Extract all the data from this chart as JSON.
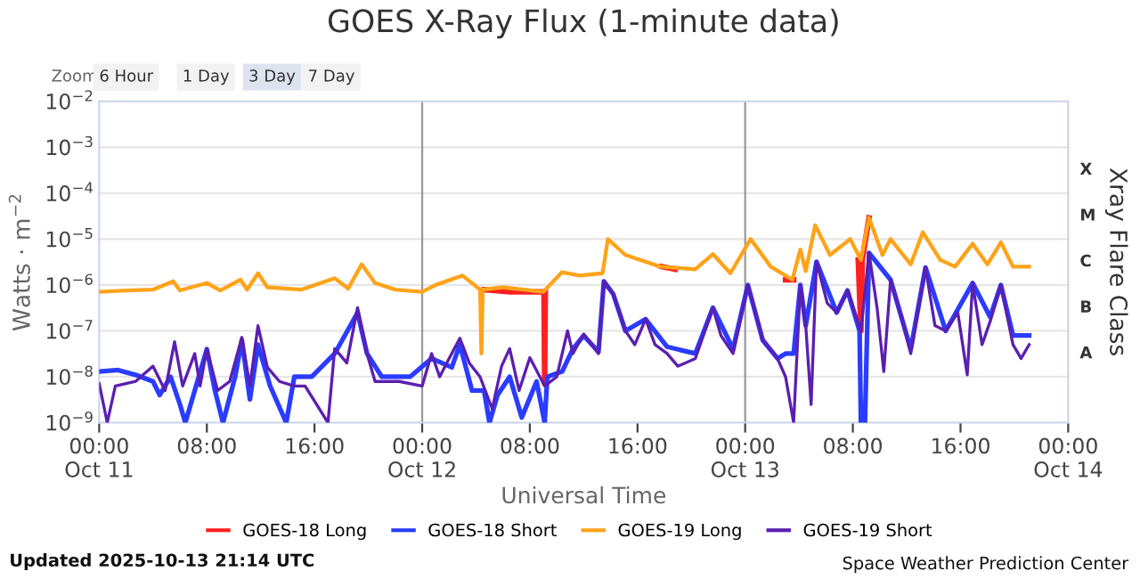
{
  "chart_data": {
    "type": "line",
    "title": "GOES X-Ray Flux (1-minute data)",
    "xlabel": "Universal Time",
    "ylabel": "Watts · m$^{−2}$",
    "y2label": "Xray Flare Class",
    "log": "y",
    "grid": "y",
    "legend": "bottom",
    "marker": "none",
    "line_style": "solid",
    "xlim": [
      "2025-10-11T00:00",
      "2025-10-14T00:00"
    ],
    "xticks": [
      {
        "value": "2025-10-11T00:00",
        "label": "00:00\nOct 11"
      },
      {
        "value": "2025-10-11T08:00",
        "label": "08:00"
      },
      {
        "value": "2025-10-11T16:00",
        "label": "16:00"
      },
      {
        "value": "2025-10-12T00:00",
        "label": "00:00\nOct 12"
      },
      {
        "value": "2025-10-12T08:00",
        "label": "08:00"
      },
      {
        "value": "2025-10-12T16:00",
        "label": "16:00"
      },
      {
        "value": "2025-10-13T00:00",
        "label": "00:00\nOct 13"
      },
      {
        "value": "2025-10-13T08:00",
        "label": "08:00"
      },
      {
        "value": "2025-10-13T16:00",
        "label": "16:00"
      },
      {
        "value": "2025-10-14T00:00",
        "label": "00:00\nOct 14"
      }
    ],
    "ylim": [
      1e-09,
      0.01
    ],
    "yticks": [
      {
        "value": 1e-09,
        "label": "10$^{−9}$"
      },
      {
        "value": 1e-08,
        "label": "10$^{−8}$"
      },
      {
        "value": 1e-07,
        "label": "10$^{−7}$"
      },
      {
        "value": 1e-06,
        "label": "10$^{−6}$"
      },
      {
        "value": 1e-05,
        "label": "10$^{−5}$"
      },
      {
        "value": 0.0001,
        "label": "10$^{−4}$"
      },
      {
        "value": 0.001,
        "label": "10$^{−3}$"
      },
      {
        "value": 0.01,
        "label": "10$^{−2}$"
      }
    ],
    "ref_lines": [
      {
        "axis": "x",
        "value": "2025-10-12T00:00",
        "label": null,
        "color": "#999999"
      },
      {
        "axis": "x",
        "value": "2025-10-13T00:00",
        "label": null,
        "color": "#999999"
      }
    ],
    "annotations": [
      "Zoom",
      "6 Hour",
      "1 Day",
      "3 Day",
      "7 Day",
      "Updated 2025-10-13 21:14 UTC",
      "Space Weather Prediction Center",
      "A",
      "B",
      "C",
      "M",
      "X"
    ],
    "series": [
      {
        "name": "GOES-18 Long",
        "color": "#ff2020",
        "x": [
          "2025-10-12T04:36",
          "2025-10-12T06:30",
          "2025-10-12T09:03",
          "2025-10-12T09:06",
          "2025-10-12T09:09",
          "2025-10-12T12:00",
          "2025-10-12T17:48",
          "2025-10-12T18:48",
          "2025-10-12T22:00",
          "2025-10-13T03:00",
          "2025-10-13T03:36",
          "2025-10-13T06:00",
          "2025-10-13T08:24",
          "2025-10-13T08:36",
          "2025-10-13T08:42",
          "2025-10-13T09:12"
        ],
        "values": [
          7.9e-07,
          7.1e-07,
          7.1e-07,
          7.1e-09,
          7.1e-07,
          null,
          2.5e-06,
          2.2e-06,
          null,
          1.3e-06,
          1.3e-06,
          null,
          3.5e-06,
          1e-07,
          3.5e-06,
          2.9e-05
        ]
      },
      {
        "name": "GOES-18 Short",
        "color": "#2a3cff",
        "x": [
          "2025-10-11T00:00",
          "2025-10-11T01:24",
          "2025-10-11T02:42",
          "2025-10-11T04:00",
          "2025-10-11T04:30",
          "2025-10-11T05:18",
          "2025-10-11T06:00",
          "2025-10-11T06:24",
          "2025-10-11T07:06",
          "2025-10-11T08:00",
          "2025-10-11T08:36",
          "2025-10-11T09:12",
          "2025-10-11T10:06",
          "2025-10-11T10:36",
          "2025-10-11T11:12",
          "2025-10-11T11:48",
          "2025-10-11T12:42",
          "2025-10-11T13:54",
          "2025-10-11T14:30",
          "2025-10-11T15:48",
          "2025-10-11T17:30",
          "2025-10-11T19:12",
          "2025-10-11T19:54",
          "2025-10-11T21:00",
          "2025-10-11T23:06",
          "2025-10-12T00:42",
          "2025-10-12T02:12",
          "2025-10-12T02:48",
          "2025-10-12T03:42",
          "2025-10-12T04:36",
          "2025-10-12T05:00",
          "2025-10-12T05:36",
          "2025-10-12T06:30",
          "2025-10-12T07:24",
          "2025-10-12T08:30",
          "2025-10-12T09:06",
          "2025-10-12T09:18",
          "2025-10-12T10:24",
          "2025-10-12T11:12",
          "2025-10-12T12:00",
          "2025-10-12T13:06",
          "2025-10-12T13:30",
          "2025-10-12T14:12",
          "2025-10-12T15:06",
          "2025-10-12T16:36",
          "2025-10-12T18:12",
          "2025-10-12T20:18",
          "2025-10-12T21:36",
          "2025-10-12T23:06",
          "2025-10-13T00:12",
          "2025-10-13T01:18",
          "2025-10-13T02:24",
          "2025-10-13T03:00",
          "2025-10-13T03:36",
          "2025-10-13T04:06",
          "2025-10-13T04:30",
          "2025-10-13T05:18",
          "2025-10-13T06:48",
          "2025-10-13T07:36",
          "2025-10-13T08:30",
          "2025-10-13T08:36",
          "2025-10-13T08:54",
          "2025-10-13T09:12",
          "2025-10-13T10:48",
          "2025-10-13T12:18",
          "2025-10-13T13:24",
          "2025-10-13T14:54",
          "2025-10-13T16:54",
          "2025-10-13T18:12",
          "2025-10-13T19:00",
          "2025-10-13T19:54",
          "2025-10-13T21:06"
        ],
        "values": [
          1.3e-08,
          1.4e-08,
          1.1e-08,
          7.9e-09,
          4e-09,
          1e-08,
          2.5e-09,
          1e-09,
          5e-09,
          4e-08,
          5e-09,
          1e-09,
          1e-08,
          6.3e-08,
          3.2e-09,
          5e-08,
          6.3e-09,
          1e-09,
          1e-08,
          1e-08,
          3.2e-08,
          2.5e-07,
          3.2e-08,
          1e-08,
          1e-08,
          2.5e-08,
          1.6e-08,
          5e-08,
          5e-09,
          5e-09,
          1e-09,
          4e-09,
          1e-08,
          1.3e-09,
          7.9e-09,
          1e-09,
          1e-08,
          1.3e-08,
          4e-08,
          7.9e-08,
          3.5e-08,
          1.2e-06,
          6.3e-07,
          1e-07,
          1.8e-07,
          4.5e-08,
          3.2e-08,
          3.2e-07,
          4e-08,
          1e-06,
          6.3e-08,
          2.5e-08,
          3.2e-08,
          3.2e-08,
          1e-06,
          1.3e-07,
          3.2e-06,
          2.5e-07,
          7.6e-07,
          1e-07,
          1e-09,
          1e-09,
          5e-06,
          1.3e-06,
          4e-08,
          2.4e-06,
          1e-07,
          1.1e-06,
          2e-07,
          1e-06,
          7.9e-08,
          7.9e-08
        ]
      },
      {
        "name": "GOES-19 Long",
        "color": "#ffa31a",
        "x": [
          "2025-10-11T00:00",
          "2025-10-11T02:00",
          "2025-10-11T04:00",
          "2025-10-11T05:30",
          "2025-10-11T06:00",
          "2025-10-11T08:00",
          "2025-10-11T09:00",
          "2025-10-11T10:30",
          "2025-10-11T11:00",
          "2025-10-11T11:48",
          "2025-10-11T12:30",
          "2025-10-11T15:00",
          "2025-10-11T17:30",
          "2025-10-11T18:30",
          "2025-10-11T19:30",
          "2025-10-11T20:30",
          "2025-10-11T22:00",
          "2025-10-12T00:00",
          "2025-10-12T01:00",
          "2025-10-12T03:00",
          "2025-10-12T04:18",
          "2025-10-12T04:24",
          "2025-10-12T04:30",
          "2025-10-12T06:00",
          "2025-10-12T07:30",
          "2025-10-12T09:00",
          "2025-10-12T10:24",
          "2025-10-12T11:42",
          "2025-10-12T13:24",
          "2025-10-12T13:48",
          "2025-10-12T15:06",
          "2025-10-12T17:42",
          "2025-10-12T20:18",
          "2025-10-12T21:36",
          "2025-10-12T22:54",
          "2025-10-13T00:24",
          "2025-10-13T01:54",
          "2025-10-13T03:30",
          "2025-10-13T04:06",
          "2025-10-13T04:30",
          "2025-10-13T05:12",
          "2025-10-13T06:18",
          "2025-10-13T07:48",
          "2025-10-13T08:36",
          "2025-10-13T09:12",
          "2025-10-13T10:12",
          "2025-10-13T10:48",
          "2025-10-13T12:18",
          "2025-10-13T13:12",
          "2025-10-13T14:30",
          "2025-10-13T15:36",
          "2025-10-13T16:54",
          "2025-10-13T18:00",
          "2025-10-13T19:00",
          "2025-10-13T19:54",
          "2025-10-13T21:06"
        ],
        "values": [
          7.1e-07,
          7.6e-07,
          7.9e-07,
          1.2e-06,
          7.6e-07,
          1.1e-06,
          7.6e-07,
          1.3e-06,
          7.9e-07,
          1.8e-06,
          8.9e-07,
          7.9e-07,
          1.4e-06,
          8.3e-07,
          2.8e-06,
          1.1e-06,
          7.9e-07,
          7.1e-07,
          1e-06,
          1.6e-06,
          7.9e-07,
          3.2e-08,
          7.9e-07,
          8.9e-07,
          7.9e-07,
          7.1e-07,
          1.9e-06,
          1.6e-06,
          1.8e-06,
          1e-05,
          4.5e-06,
          2.5e-06,
          2.2e-06,
          4.7e-06,
          1.8e-06,
          1e-05,
          2.5e-06,
          1.3e-06,
          5.9e-06,
          2e-06,
          2e-05,
          4.5e-06,
          1e-05,
          3.5e-06,
          2.9e-05,
          4.5e-06,
          1e-05,
          2.8e-06,
          1.4e-05,
          3.5e-06,
          2.5e-06,
          7.9e-06,
          2.8e-06,
          8.5e-06,
          2.5e-06,
          2.5e-06
        ]
      },
      {
        "name": "GOES-19 Short",
        "color": "#5b1fb0",
        "x": [
          "2025-10-11T00:00",
          "2025-10-11T00:36",
          "2025-10-11T01:12",
          "2025-10-11T02:42",
          "2025-10-11T04:00",
          "2025-10-11T04:54",
          "2025-10-11T05:36",
          "2025-10-11T06:12",
          "2025-10-11T07:06",
          "2025-10-11T07:30",
          "2025-10-11T08:00",
          "2025-10-11T08:48",
          "2025-10-11T09:42",
          "2025-10-11T10:36",
          "2025-10-11T11:12",
          "2025-10-11T11:48",
          "2025-10-11T12:30",
          "2025-10-11T13:24",
          "2025-10-11T14:30",
          "2025-10-11T15:18",
          "2025-10-11T17:00",
          "2025-10-11T17:30",
          "2025-10-11T18:24",
          "2025-10-11T19:12",
          "2025-10-11T19:54",
          "2025-10-11T20:30",
          "2025-10-11T22:18",
          "2025-10-12T00:00",
          "2025-10-12T00:42",
          "2025-10-12T01:18",
          "2025-10-12T02:00",
          "2025-10-12T02:48",
          "2025-10-12T03:30",
          "2025-10-12T04:18",
          "2025-10-12T05:12",
          "2025-10-12T05:54",
          "2025-10-12T06:30",
          "2025-10-12T07:12",
          "2025-10-12T08:00",
          "2025-10-12T09:06",
          "2025-10-12T10:00",
          "2025-10-12T10:48",
          "2025-10-12T11:12",
          "2025-10-12T12:00",
          "2025-10-12T13:06",
          "2025-10-12T13:30",
          "2025-10-12T14:12",
          "2025-10-12T15:06",
          "2025-10-12T15:48",
          "2025-10-12T16:36",
          "2025-10-12T17:18",
          "2025-10-12T18:12",
          "2025-10-12T19:00",
          "2025-10-12T20:18",
          "2025-10-12T21:36",
          "2025-10-12T22:12",
          "2025-10-12T23:06",
          "2025-10-13T00:12",
          "2025-10-13T01:18",
          "2025-10-13T02:24",
          "2025-10-13T03:00",
          "2025-10-13T03:36",
          "2025-10-13T04:06",
          "2025-10-13T04:30",
          "2025-10-13T04:54",
          "2025-10-13T05:18",
          "2025-10-13T06:06",
          "2025-10-13T06:48",
          "2025-10-13T07:36",
          "2025-10-13T08:36",
          "2025-10-13T09:12",
          "2025-10-13T09:48",
          "2025-10-13T10:18",
          "2025-10-13T10:48",
          "2025-10-13T11:42",
          "2025-10-13T12:18",
          "2025-10-13T13:24",
          "2025-10-13T14:06",
          "2025-10-13T14:54",
          "2025-10-13T15:48",
          "2025-10-13T16:30",
          "2025-10-13T16:54",
          "2025-10-13T17:36",
          "2025-10-13T18:12",
          "2025-10-13T19:00",
          "2025-10-13T19:54",
          "2025-10-13T20:30",
          "2025-10-13T21:06"
        ],
        "values": [
          7.1e-09,
          1e-09,
          6.3e-09,
          7.9e-09,
          1.7e-08,
          5e-09,
          5.8e-08,
          6.3e-09,
          3.2e-08,
          6.3e-09,
          4.1e-08,
          5e-09,
          7.9e-09,
          7.2e-08,
          6.3e-09,
          1.3e-07,
          1.6e-08,
          7.9e-09,
          6.3e-09,
          6.3e-09,
          1e-09,
          4.1e-08,
          2e-08,
          3.2e-07,
          3.2e-08,
          7.9e-09,
          7.9e-09,
          6.3e-09,
          3.2e-08,
          1e-08,
          2.5e-08,
          6.9e-08,
          2e-08,
          1e-08,
          2e-09,
          1.7e-08,
          4.1e-08,
          5e-09,
          2.6e-08,
          6.3e-09,
          1e-08,
          1e-07,
          3.2e-08,
          8.5e-08,
          3.2e-08,
          1.2e-06,
          6.3e-07,
          1e-07,
          5e-08,
          1.8e-07,
          5e-08,
          3.2e-08,
          1.7e-08,
          2.5e-08,
          3.2e-07,
          7.9e-08,
          3.2e-08,
          1e-06,
          6.3e-08,
          2.5e-08,
          1e-08,
          1e-09,
          1e-06,
          1.3e-07,
          2.5e-09,
          3.2e-06,
          4e-07,
          2.5e-07,
          7.6e-07,
          1e-07,
          5e-06,
          3.2e-07,
          1.3e-08,
          1.3e-06,
          1.6e-07,
          3.2e-08,
          2.4e-06,
          1.3e-07,
          1e-07,
          2.5e-07,
          1.1e-08,
          1.1e-06,
          5e-08,
          1.6e-07,
          1e-06,
          5e-08,
          2.5e-08,
          5e-08
        ]
      }
    ]
  }
}
